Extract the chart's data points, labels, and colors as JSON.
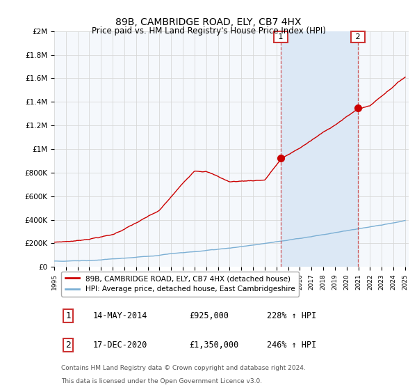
{
  "title": "89B, CAMBRIDGE ROAD, ELY, CB7 4HX",
  "subtitle": "Price paid vs. HM Land Registry's House Price Index (HPI)",
  "ylim": [
    0,
    2000000
  ],
  "yticks": [
    0,
    200000,
    400000,
    600000,
    800000,
    1000000,
    1200000,
    1400000,
    1600000,
    1800000,
    2000000
  ],
  "ytick_labels": [
    "£0",
    "£200K",
    "£400K",
    "£600K",
    "£800K",
    "£1M",
    "£1.2M",
    "£1.4M",
    "£1.6M",
    "£1.8M",
    "£2M"
  ],
  "x_start_year": 1995,
  "x_end_year": 2025,
  "sale1_date": 2014.37,
  "sale1_price": 925000,
  "sale1_label": "1",
  "sale2_date": 2020.96,
  "sale2_price": 1350000,
  "sale2_label": "2",
  "hpi_color": "#7bafd4",
  "price_color": "#cc0000",
  "dot_color": "#cc0000",
  "vline_color": "#cc3333",
  "shade_color": "#dce8f5",
  "annotation_box_color": "#cc3333",
  "grid_color": "#d8d8d8",
  "background_color": "#f5f8fc",
  "legend_label_price": "89B, CAMBRIDGE ROAD, ELY, CB7 4HX (detached house)",
  "legend_label_hpi": "HPI: Average price, detached house, East Cambridgeshire",
  "table_row1": [
    "1",
    "14-MAY-2014",
    "£925,000",
    "228% ↑ HPI"
  ],
  "table_row2": [
    "2",
    "17-DEC-2020",
    "£1,350,000",
    "246% ↑ HPI"
  ],
  "footer_line1": "Contains HM Land Registry data © Crown copyright and database right 2024.",
  "footer_line2": "This data is licensed under the Open Government Licence v3.0."
}
